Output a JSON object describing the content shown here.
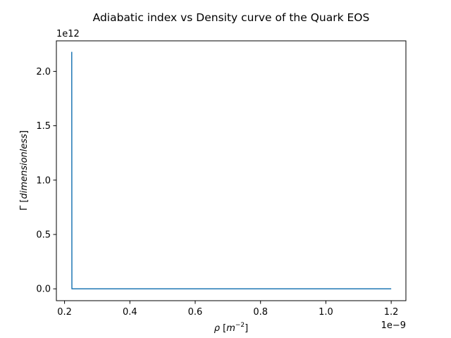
{
  "chart_data": {
    "type": "line",
    "title": "Adiabatic index vs Density curve of the Quark EOS",
    "xlabel": {
      "symbol": "ρ",
      "unit_open": "[",
      "unit_base": "m",
      "unit_exp": "−2",
      "unit_close": "]"
    },
    "ylabel": {
      "symbol": "Γ",
      "unit_open": "[",
      "unit_text": "dimensionless",
      "unit_close": "]"
    },
    "x_offset_text": "1e−9",
    "y_offset_text": "1e12",
    "x_scale": 1e-09,
    "y_scale": 1000000000000.0,
    "xlim": [
      0.175,
      1.245
    ],
    "ylim": [
      -0.109,
      2.281
    ],
    "x_ticks": [
      0.2,
      0.4,
      0.6,
      0.8,
      1.0,
      1.2
    ],
    "x_tick_labels": [
      "0.2",
      "0.4",
      "0.6",
      "0.8",
      "1.0",
      "1.2"
    ],
    "y_ticks": [
      0.0,
      0.5,
      1.0,
      1.5,
      2.0
    ],
    "y_tick_labels": [
      "0.0",
      "0.5",
      "1.0",
      "1.5",
      "2.0"
    ],
    "grid": false,
    "series": [
      {
        "color": "#1f77b4",
        "x": [
          0.222,
          0.2225,
          0.25,
          0.4,
          0.6,
          0.8,
          1.0,
          1.2
        ],
        "y": [
          2.18,
          0.0,
          0.0,
          0.0,
          0.0,
          0.0,
          0.0,
          0.0
        ]
      }
    ]
  }
}
